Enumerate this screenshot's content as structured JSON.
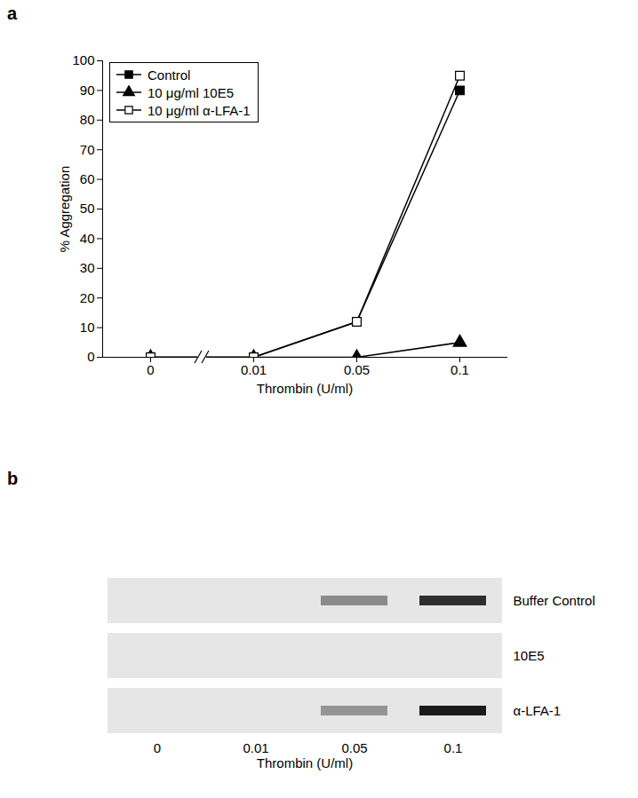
{
  "chart_data": [
    {
      "type": "line",
      "title": "a",
      "x_label": "Thrombin (U/ml)",
      "y_label": "% Aggregation",
      "categories": [
        "0",
        "0.01",
        "0.05",
        "0.1"
      ],
      "series": [
        {
          "name": "Control",
          "color": "#000000",
          "marker": "filled_square",
          "line_style": "solid",
          "values": [
            0,
            0,
            12,
            90
          ]
        },
        {
          "name": "10 μg/ml 10E5",
          "color": "#000000",
          "marker": "filled_triangle",
          "line_style": "solid",
          "values": [
            0,
            0,
            0,
            5
          ]
        },
        {
          "name": "10 μg/ml α-LFA-1",
          "color": "#000000",
          "marker": "open_square",
          "line_style": "solid",
          "values": [
            0,
            0,
            12,
            95
          ]
        }
      ],
      "ylim": [
        0,
        100
      ],
      "yticks": [
        0,
        10,
        20,
        30,
        40,
        50,
        60,
        70,
        80,
        90,
        100
      ],
      "legend": "upper left"
    },
    {
      "type": "blot",
      "title": "b",
      "x_label": "Thrombin (U/ml)",
      "categories": [
        "0",
        "0.01",
        "0.05",
        "0.1"
      ],
      "series": [
        {
          "name": "Buffer Control",
          "values": [
            0,
            0,
            0.45,
            0.9
          ]
        },
        {
          "name": "10E5",
          "values": [
            0,
            0,
            0,
            0
          ]
        },
        {
          "name": "α-LFA-1",
          "values": [
            0,
            0,
            0.4,
            1
          ]
        }
      ]
    }
  ]
}
